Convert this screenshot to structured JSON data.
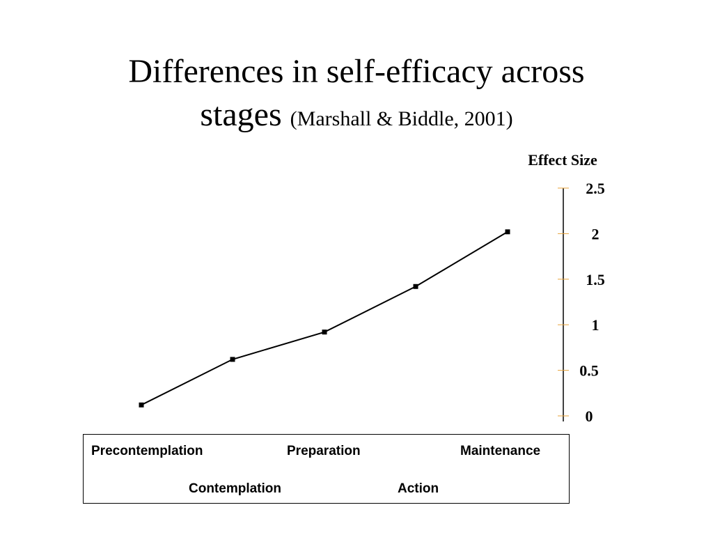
{
  "slide": {
    "title_line1": "Differences in self-efficacy across",
    "title_line2": "stages",
    "citation": "(Marshall & Biddle, 2001)"
  },
  "chart_data": {
    "type": "line",
    "ylabel": "Effect Size",
    "ylim": [
      0,
      2.5
    ],
    "y_ticks": [
      "0",
      "0.5",
      "1",
      "1.5",
      "2",
      "2.5"
    ],
    "categories": [
      "Precontemplation",
      "Contemplation",
      "Preparation",
      "Action",
      "Maintenance"
    ],
    "series": [
      {
        "values": [
          0.12,
          0.62,
          0.92,
          1.42,
          2.02
        ]
      }
    ],
    "axis_color": "#000000",
    "tick_color": "#e8a33a",
    "line_color": "#000000",
    "grid": false
  }
}
